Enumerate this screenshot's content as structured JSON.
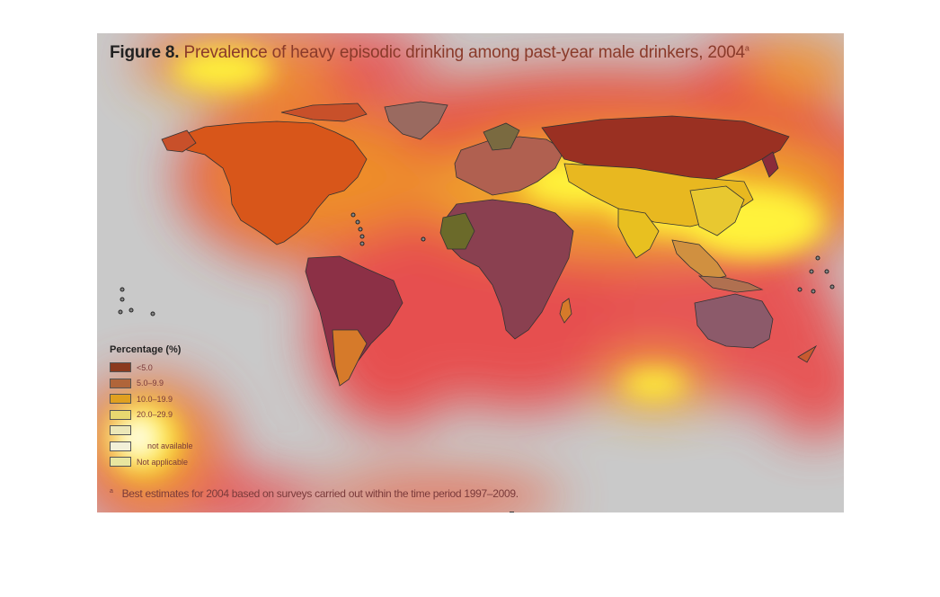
{
  "title": {
    "label": "Figure 8.",
    "text": "Prevalence of heavy episodic drinking among past-year male drinkers, 2004",
    "note_marker": "a"
  },
  "legend": {
    "title": "Percentage (%)",
    "items": [
      {
        "label": "<5.0",
        "color": "#8b3a1e"
      },
      {
        "label": "5.0–9.9",
        "color": "#b0653a"
      },
      {
        "label": "10.0–19.9",
        "color": "#e0a020"
      },
      {
        "label": "20.0–29.9",
        "color": "#e8d870"
      },
      {
        "label": "",
        "color": "#ece7b8"
      },
      {
        "label": "not available",
        "color": "#f2f0d8"
      },
      {
        "label": "Not applicable",
        "color": "#e8e6a0"
      }
    ]
  },
  "footnote": {
    "marker": "a",
    "text": "Best estimates for 2004 based on surveys carried out within the time period 1997–2009."
  },
  "colors": {
    "panel_bg": "#c9c9c9",
    "heat_red": "#e84040",
    "heat_orange": "#f29a20",
    "heat_yellow": "#fff23a",
    "heat_white": "#ffffff"
  }
}
